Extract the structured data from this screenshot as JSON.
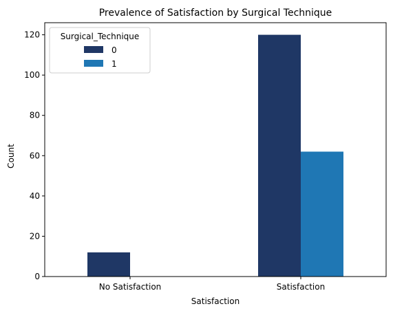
{
  "chart_data": {
    "type": "bar",
    "title": "Prevalence of Satisfaction by Surgical Technique",
    "xlabel": "Satisfaction",
    "ylabel": "Count",
    "categories": [
      "No Satisfaction",
      "Satisfaction"
    ],
    "series": [
      {
        "name": "0",
        "values": [
          12,
          120
        ],
        "color": "#1f3765"
      },
      {
        "name": "1",
        "values": [
          0,
          62
        ],
        "color": "#1f77b4"
      }
    ],
    "ylim": [
      0,
      126
    ],
    "yticks": [
      0,
      20,
      40,
      60,
      80,
      100,
      120
    ],
    "legend": {
      "title": "Surgical_Technique",
      "placement": "top-left"
    },
    "grid": false
  }
}
